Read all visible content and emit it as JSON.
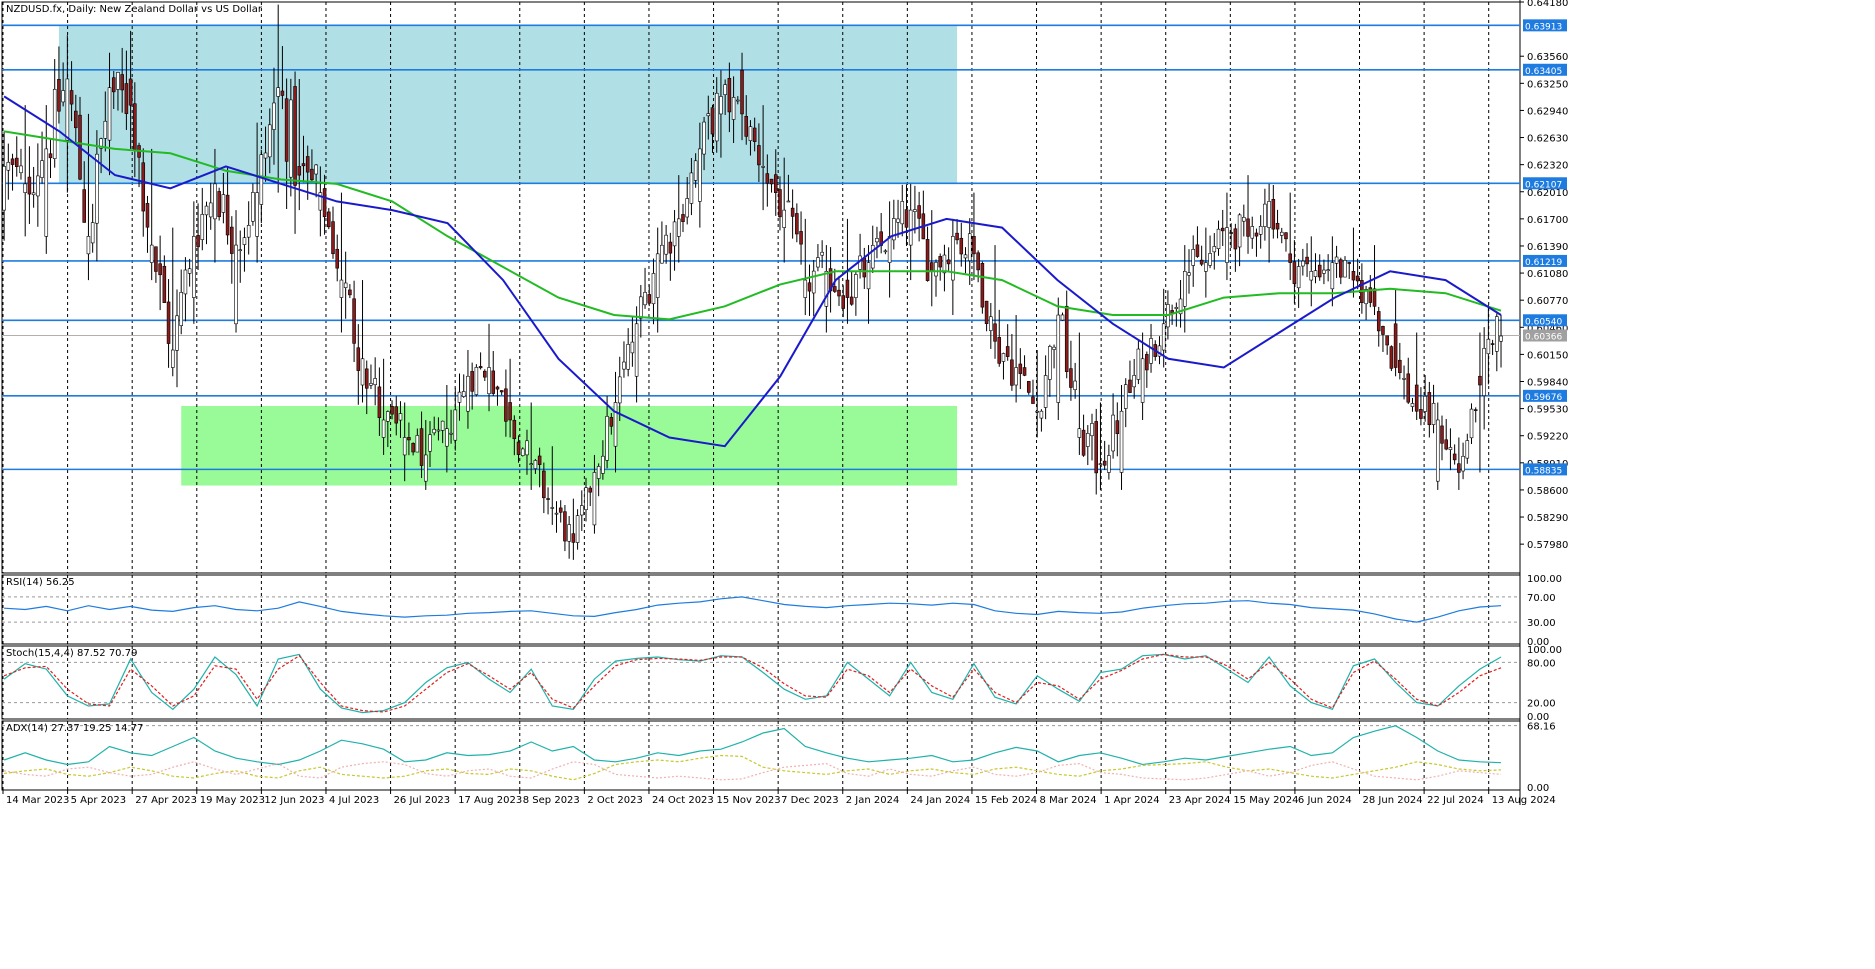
{
  "chart_data": {
    "type": "candlestick",
    "title": "NZDUSD.fx, Daily:  New Zealand Dollar vs US Dollar",
    "price_axis": {
      "ylim": [
        0.5765,
        0.6418
      ],
      "ticks": [
        "0.64180",
        "0.63560",
        "0.63250",
        "0.62940",
        "0.62630",
        "0.62320",
        "0.62010",
        "0.61700",
        "0.61390",
        "0.61080",
        "0.60770",
        "0.60460",
        "0.60150",
        "0.59840",
        "0.59530",
        "0.59220",
        "0.58910",
        "0.58600",
        "0.58290",
        "0.57980"
      ]
    },
    "x_axis": {
      "labels": [
        "14 Mar 2023",
        "5 Apr 2023",
        "27 Apr 2023",
        "19 May 2023",
        "12 Jun 2023",
        "4 Jul 2023",
        "26 Jul 2023",
        "17 Aug 2023",
        "8 Sep 2023",
        "2 Oct 2023",
        "24 Oct 2023",
        "15 Nov 2023",
        "7 Dec 2023",
        "2 Jan 2024",
        "24 Jan 2024",
        "15 Feb 2024",
        "8 Mar 2024",
        "1 Apr 2024",
        "23 Apr 2024",
        "15 May 2024",
        "6 Jun 2024",
        "28 Jun 2024",
        "22 Jul 2024",
        "13 Aug 2024"
      ]
    },
    "levels": [
      {
        "value": 0.63913,
        "label": "0.63913"
      },
      {
        "value": 0.63405,
        "label": "0.63405"
      },
      {
        "value": 0.62107,
        "label": "0.62107"
      },
      {
        "value": 0.61219,
        "label": "0.61219"
      },
      {
        "value": 0.6054,
        "label": "0.60540"
      },
      {
        "value": 0.59676,
        "label": "0.59676"
      },
      {
        "value": 0.58835,
        "label": "0.58835"
      }
    ],
    "current_price": {
      "value": 0.60366,
      "label": "0.60366"
    },
    "zones": [
      {
        "from_index": 13,
        "to_index": 226,
        "top": 0.63913,
        "bottom": 0.62107,
        "color": "#b0e0e6"
      },
      {
        "from_index": 42,
        "to_index": 226,
        "top": 0.5956,
        "bottom": 0.5865,
        "color": "#98fb98"
      }
    ],
    "anchors": [
      [
        0.618,
        0.627,
        0.6145,
        0.623
      ],
      [
        0.62,
        0.63,
        0.615,
        0.621
      ],
      [
        0.615,
        0.63,
        0.613,
        0.625
      ],
      [
        0.626,
        0.638,
        0.62,
        0.633
      ],
      [
        0.613,
        0.629,
        0.61,
        0.615
      ],
      [
        0.626,
        0.636,
        0.622,
        0.632
      ],
      [
        0.633,
        0.6385,
        0.625,
        0.63
      ],
      [
        0.612,
        0.625,
        0.61,
        0.614
      ],
      [
        0.6,
        0.616,
        0.599,
        0.602
      ],
      [
        0.608,
        0.619,
        0.605,
        0.615
      ],
      [
        0.617,
        0.625,
        0.612,
        0.621
      ],
      [
        0.605,
        0.618,
        0.604,
        0.614
      ],
      [
        0.615,
        0.628,
        0.612,
        0.62
      ],
      [
        0.631,
        0.6415,
        0.62,
        0.632
      ],
      [
        0.623,
        0.633,
        0.618,
        0.622
      ],
      [
        0.618,
        0.623,
        0.615,
        0.62
      ],
      [
        0.608,
        0.62,
        0.604,
        0.61
      ],
      [
        0.598,
        0.61,
        0.596,
        0.601
      ],
      [
        0.592,
        0.601,
        0.59,
        0.594
      ],
      [
        0.59,
        0.596,
        0.587,
        0.592
      ],
      [
        0.587,
        0.594,
        0.586,
        0.59
      ],
      [
        0.591,
        0.598,
        0.588,
        0.593
      ],
      [
        0.595,
        0.602,
        0.593,
        0.599
      ],
      [
        0.597,
        0.605,
        0.595,
        0.6
      ],
      [
        0.596,
        0.601,
        0.592,
        0.594
      ],
      [
        0.589,
        0.596,
        0.586,
        0.589
      ],
      [
        0.584,
        0.591,
        0.582,
        0.584
      ],
      [
        0.581,
        0.585,
        0.578,
        0.58
      ],
      [
        0.582,
        0.59,
        0.581,
        0.588
      ],
      [
        0.591,
        0.5995,
        0.588,
        0.596
      ],
      [
        0.599,
        0.607,
        0.596,
        0.605
      ],
      [
        0.608,
        0.616,
        0.604,
        0.613
      ],
      [
        0.615,
        0.622,
        0.612,
        0.617
      ],
      [
        0.619,
        0.628,
        0.616,
        0.625
      ],
      [
        0.629,
        0.634,
        0.624,
        0.631
      ],
      [
        0.634,
        0.636,
        0.626,
        0.629
      ],
      [
        0.623,
        0.63,
        0.618,
        0.623
      ],
      [
        0.616,
        0.624,
        0.612,
        0.618
      ],
      [
        0.608,
        0.617,
        0.606,
        0.61
      ],
      [
        0.607,
        0.614,
        0.604,
        0.611
      ],
      [
        0.61,
        0.617,
        0.605,
        0.608
      ],
      [
        0.609,
        0.614,
        0.605,
        0.612
      ],
      [
        0.612,
        0.619,
        0.608,
        0.615
      ],
      [
        0.614,
        0.621,
        0.61,
        0.618
      ],
      [
        0.612,
        0.618,
        0.607,
        0.611
      ],
      [
        0.61,
        0.617,
        0.606,
        0.615
      ],
      [
        0.615,
        0.62,
        0.61,
        0.613
      ],
      [
        0.605,
        0.614,
        0.601,
        0.603
      ],
      [
        0.598,
        0.606,
        0.596,
        0.6
      ],
      [
        0.595,
        0.602,
        0.592,
        0.595
      ],
      [
        0.596,
        0.608,
        0.594,
        0.606
      ],
      [
        0.592,
        0.604,
        0.59,
        0.593
      ],
      [
        0.589,
        0.596,
        0.586,
        0.589
      ],
      [
        0.588,
        0.598,
        0.586,
        0.595
      ],
      [
        0.596,
        0.604,
        0.594,
        0.601
      ],
      [
        0.602,
        0.609,
        0.6,
        0.605
      ],
      [
        0.607,
        0.614,
        0.604,
        0.611
      ],
      [
        0.611,
        0.616,
        0.608,
        0.612
      ],
      [
        0.612,
        0.62,
        0.61,
        0.616
      ],
      [
        0.617,
        0.622,
        0.613,
        0.615
      ],
      [
        0.616,
        0.621,
        0.612,
        0.619
      ],
      [
        0.613,
        0.62,
        0.61,
        0.612
      ],
      [
        0.61,
        0.615,
        0.607,
        0.611
      ],
      [
        0.609,
        0.615,
        0.607,
        0.612
      ],
      [
        0.611,
        0.616,
        0.608,
        0.61
      ],
      [
        0.609,
        0.614,
        0.606,
        0.607
      ],
      [
        0.605,
        0.609,
        0.599,
        0.6
      ],
      [
        0.598,
        0.604,
        0.594,
        0.595
      ],
      [
        0.587,
        0.596,
        0.586,
        0.594
      ],
      [
        0.589,
        0.592,
        0.586,
        0.588
      ],
      [
        0.599,
        0.604,
        0.588,
        0.598
      ],
      [
        0.603,
        0.606,
        0.6,
        0.6036
      ]
    ],
    "ma_fast": [
      0.631,
      0.627,
      0.622,
      0.6205,
      0.623,
      0.621,
      0.619,
      0.618,
      0.6165,
      0.61,
      0.601,
      0.595,
      0.592,
      0.591,
      0.599,
      0.61,
      0.615,
      0.617,
      0.616,
      0.61,
      0.605,
      0.601,
      0.6,
      0.604,
      0.608,
      0.611,
      0.61,
      0.606
    ],
    "ma_slow": [
      0.627,
      0.626,
      0.625,
      0.6245,
      0.6225,
      0.6215,
      0.621,
      0.619,
      0.615,
      0.6115,
      0.608,
      0.606,
      0.6055,
      0.607,
      0.6095,
      0.611,
      0.611,
      0.611,
      0.61,
      0.607,
      0.606,
      0.606,
      0.608,
      0.6085,
      0.6085,
      0.609,
      0.6085,
      0.6065
    ],
    "rsi": {
      "label": "RSI(14) 56.25",
      "levels": [
        {
          "value": 100,
          "label": "100.00"
        },
        {
          "value": 70,
          "label": "70.00"
        },
        {
          "value": 30,
          "label": "30.00"
        },
        {
          "value": 0,
          "label": "0.00"
        }
      ],
      "values": [
        52,
        50,
        55,
        48,
        56,
        50,
        55,
        49,
        47,
        53,
        56,
        50,
        48,
        52,
        62,
        55,
        47,
        43,
        40,
        38,
        40,
        41,
        44,
        45,
        47,
        48,
        44,
        40,
        39,
        45,
        50,
        57,
        60,
        62,
        67,
        70,
        64,
        58,
        55,
        53,
        56,
        58,
        60,
        59,
        57,
        60,
        58,
        48,
        44,
        42,
        47,
        45,
        44,
        46,
        52,
        56,
        59,
        60,
        63,
        64,
        60,
        58,
        53,
        51,
        49,
        43,
        35,
        30,
        38,
        48,
        54,
        56
      ]
    },
    "stoch": {
      "label": "Stoch(15,4,4) 87.52 70.79",
      "levels": [
        {
          "value": 100,
          "label": "100.00"
        },
        {
          "value": 80,
          "label": "80.00"
        },
        {
          "value": 20,
          "label": "20.00"
        },
        {
          "value": 0,
          "label": "0.00"
        }
      ],
      "main": [
        55,
        78,
        70,
        30,
        15,
        18,
        85,
        35,
        10,
        40,
        88,
        62,
        15,
        85,
        92,
        40,
        12,
        5,
        8,
        20,
        50,
        72,
        80,
        55,
        35,
        70,
        15,
        10,
        55,
        82,
        86,
        88,
        84,
        82,
        90,
        88,
        65,
        40,
        25,
        30,
        80,
        55,
        30,
        80,
        35,
        25,
        78,
        28,
        18,
        60,
        40,
        22,
        65,
        70,
        90,
        92,
        85,
        90,
        70,
        50,
        88,
        45,
        20,
        10,
        75,
        85,
        50,
        20,
        15,
        45,
        70,
        88
      ],
      "signal": [
        60,
        72,
        74,
        40,
        18,
        15,
        70,
        45,
        15,
        30,
        75,
        70,
        25,
        70,
        90,
        50,
        15,
        8,
        6,
        15,
        40,
        65,
        78,
        60,
        40,
        65,
        25,
        12,
        45,
        75,
        84,
        86,
        85,
        83,
        88,
        88,
        72,
        48,
        30,
        28,
        70,
        60,
        35,
        70,
        45,
        28,
        70,
        35,
        20,
        50,
        45,
        25,
        55,
        68,
        85,
        92,
        88,
        88,
        75,
        55,
        80,
        55,
        25,
        12,
        65,
        82,
        55,
        25,
        15,
        35,
        60,
        72
      ]
    },
    "adx": {
      "label": "ADX(14) 27.37 19.25 14.77",
      "levels": [
        {
          "value": 68.16,
          "label": "68.16"
        },
        {
          "value": 0,
          "label": "0.00"
        }
      ],
      "adx": [
        30,
        38,
        30,
        25,
        28,
        45,
        38,
        35,
        45,
        55,
        40,
        32,
        28,
        25,
        30,
        40,
        52,
        48,
        42,
        28,
        30,
        38,
        35,
        36,
        40,
        50,
        40,
        45,
        30,
        28,
        32,
        38,
        35,
        40,
        42,
        50,
        60,
        65,
        45,
        38,
        32,
        28,
        30,
        32,
        35,
        28,
        30,
        38,
        44,
        40,
        28,
        35,
        38,
        32,
        25,
        28,
        32,
        30,
        34,
        38,
        42,
        45,
        35,
        38,
        55,
        62,
        68,
        55,
        40,
        30,
        28,
        27
      ],
      "plus_di": [
        15,
        18,
        20,
        14,
        12,
        16,
        22,
        18,
        12,
        10,
        15,
        18,
        12,
        10,
        18,
        22,
        14,
        12,
        10,
        12,
        18,
        20,
        15,
        14,
        20,
        18,
        12,
        8,
        15,
        25,
        28,
        30,
        28,
        32,
        35,
        34,
        22,
        18,
        16,
        14,
        18,
        20,
        14,
        18,
        20,
        16,
        14,
        20,
        22,
        18,
        14,
        12,
        18,
        20,
        24,
        25,
        26,
        28,
        22,
        18,
        20,
        16,
        12,
        10,
        14,
        18,
        22,
        28,
        25,
        20,
        18,
        19
      ],
      "minus_di": [
        18,
        14,
        12,
        20,
        22,
        16,
        12,
        14,
        22,
        28,
        20,
        14,
        20,
        26,
        12,
        10,
        22,
        26,
        28,
        25,
        15,
        12,
        18,
        20,
        12,
        10,
        20,
        28,
        25,
        14,
        12,
        10,
        12,
        10,
        8,
        9,
        16,
        22,
        24,
        26,
        15,
        12,
        20,
        14,
        12,
        18,
        22,
        14,
        12,
        16,
        24,
        26,
        16,
        14,
        10,
        9,
        8,
        10,
        14,
        18,
        12,
        16,
        24,
        28,
        20,
        12,
        10,
        8,
        12,
        18,
        16,
        14
      ]
    }
  }
}
